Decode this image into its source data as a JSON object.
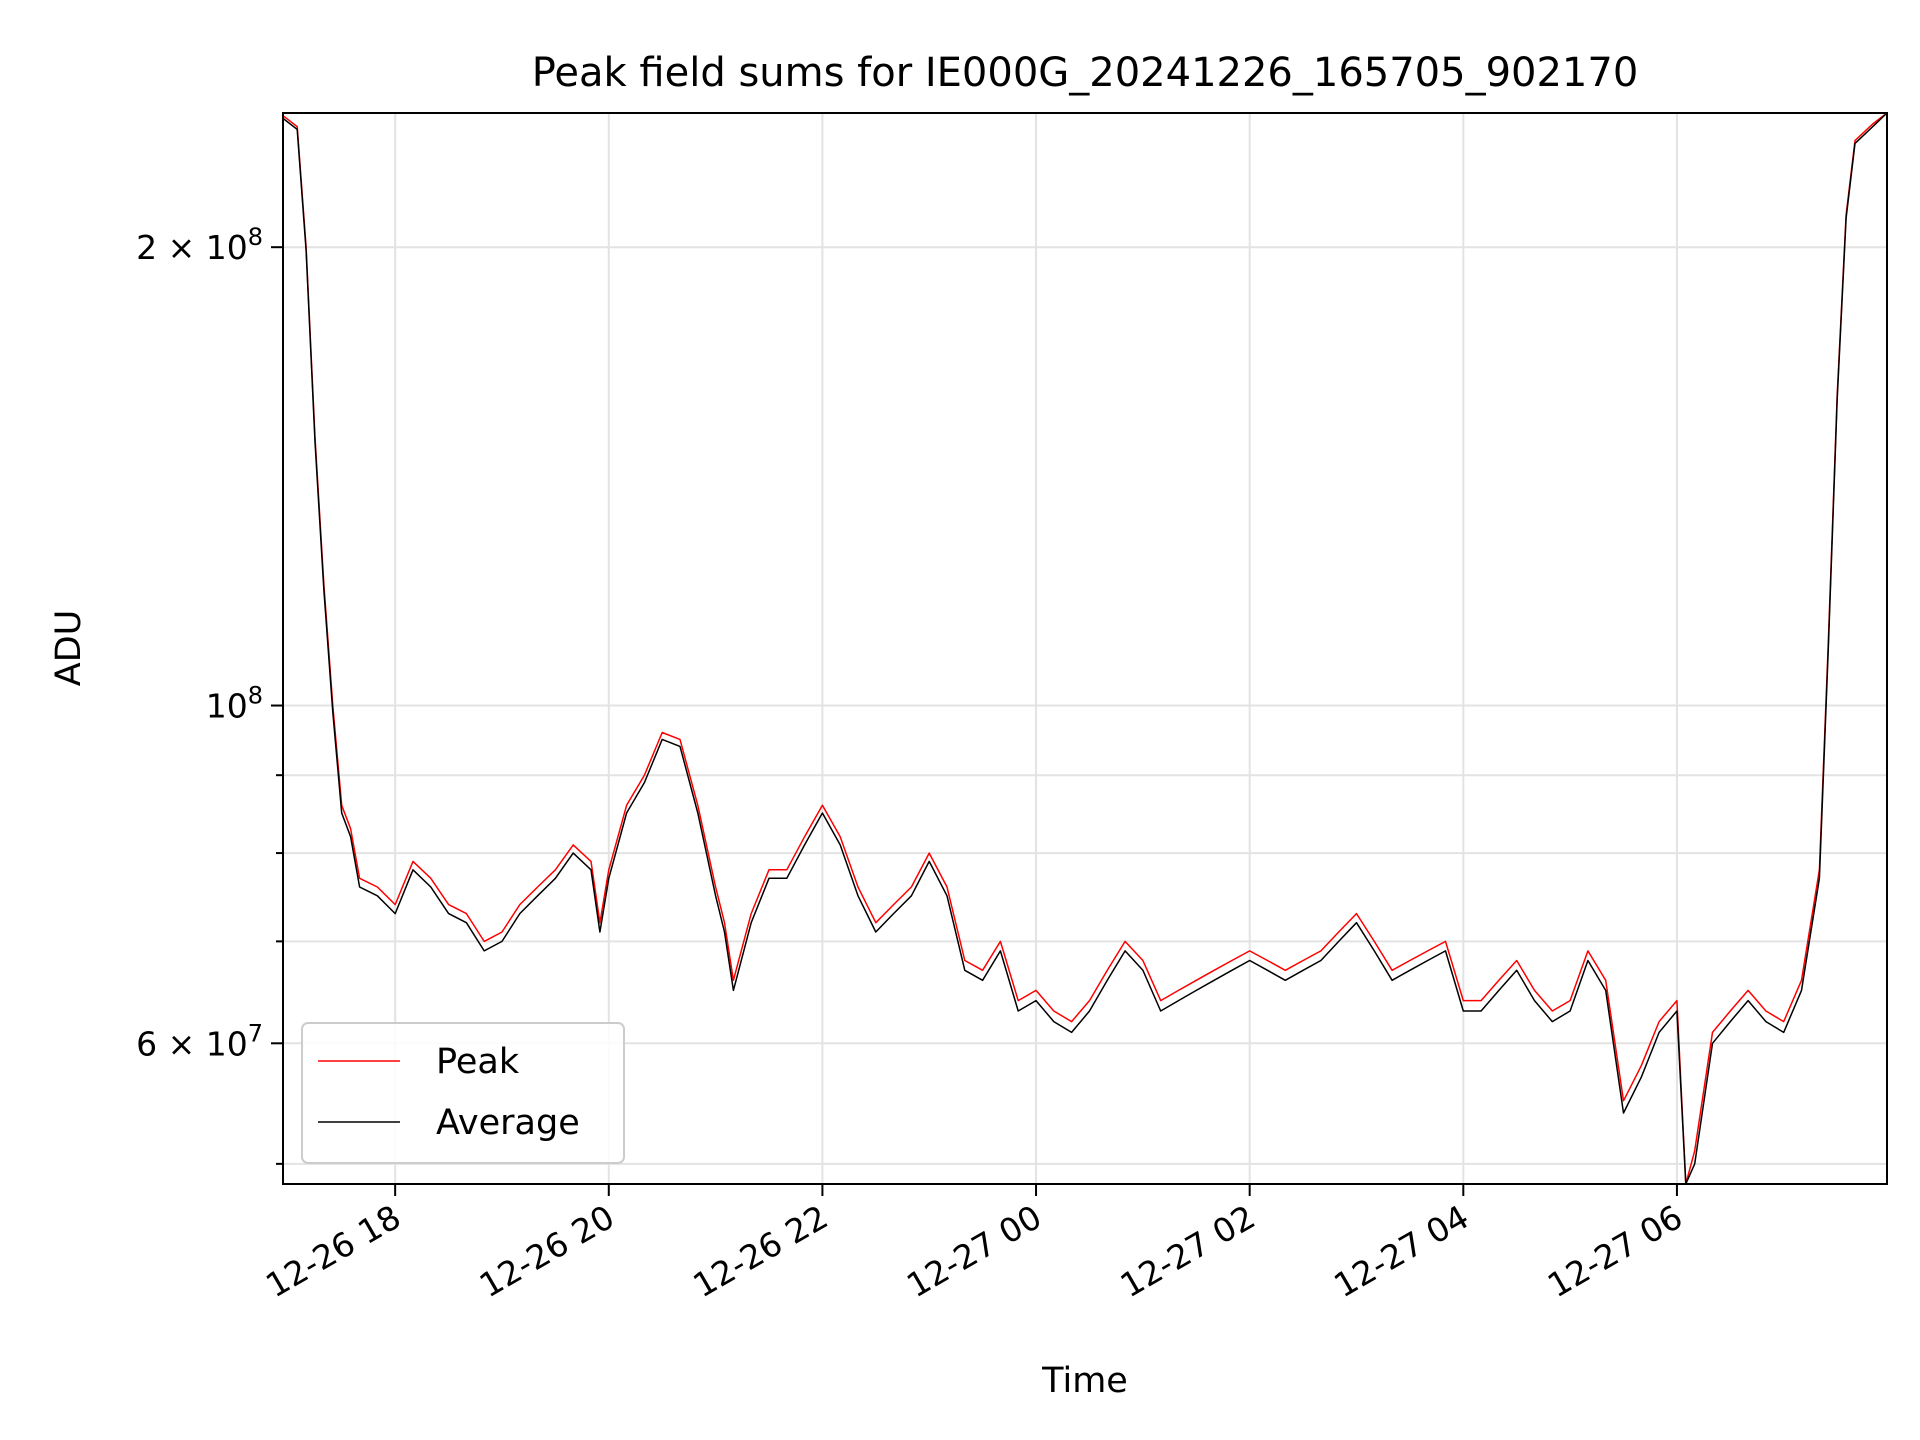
{
  "chart_data": {
    "type": "line",
    "title": "Peak field sums for IE000G_20241226_165705_902170",
    "xlabel": "Time",
    "ylabel": "ADU",
    "yscale": "log",
    "grid": true,
    "legend_position": "lower-left",
    "xlim": [
      "2024-12-26 16:57",
      "2024-12-27 07:58"
    ],
    "ylim": [
      48500000,
      245000000
    ],
    "x_ticks": [
      {
        "value": "2024-12-26 18:00",
        "label": "12-26 18"
      },
      {
        "value": "2024-12-26 20:00",
        "label": "12-26 20"
      },
      {
        "value": "2024-12-26 22:00",
        "label": "12-26 22"
      },
      {
        "value": "2024-12-27 00:00",
        "label": "12-27 00"
      },
      {
        "value": "2024-12-27 02:00",
        "label": "12-27 02"
      },
      {
        "value": "2024-12-27 04:00",
        "label": "12-27 04"
      },
      {
        "value": "2024-12-27 06:00",
        "label": "12-27 06"
      }
    ],
    "y_major_ticks": [
      {
        "value": 100000000,
        "base": "10",
        "exp": "8"
      },
      {
        "value": 60000000,
        "base": "6 × 10",
        "exp": "7"
      },
      {
        "value": 200000000,
        "base": "2 × 10",
        "exp": "8"
      }
    ],
    "y_minor_ticks": [
      50000000,
      70000000,
      80000000,
      90000000
    ],
    "series": [
      {
        "name": "Peak",
        "color": "#ff0000",
        "x": [
          "2024-12-26 16:57",
          "2024-12-26 17:05",
          "2024-12-26 17:10",
          "2024-12-26 17:15",
          "2024-12-26 17:20",
          "2024-12-26 17:25",
          "2024-12-26 17:30",
          "2024-12-26 17:35",
          "2024-12-26 17:40",
          "2024-12-26 17:50",
          "2024-12-26 18:00",
          "2024-12-26 18:10",
          "2024-12-26 18:20",
          "2024-12-26 18:30",
          "2024-12-26 18:40",
          "2024-12-26 18:50",
          "2024-12-26 19:00",
          "2024-12-26 19:10",
          "2024-12-26 19:20",
          "2024-12-26 19:30",
          "2024-12-26 19:40",
          "2024-12-26 19:50",
          "2024-12-26 19:55",
          "2024-12-26 20:00",
          "2024-12-26 20:10",
          "2024-12-26 20:20",
          "2024-12-26 20:30",
          "2024-12-26 20:40",
          "2024-12-26 20:50",
          "2024-12-26 21:00",
          "2024-12-26 21:05",
          "2024-12-26 21:10",
          "2024-12-26 21:20",
          "2024-12-26 21:30",
          "2024-12-26 21:40",
          "2024-12-26 21:50",
          "2024-12-26 22:00",
          "2024-12-26 22:10",
          "2024-12-26 22:20",
          "2024-12-26 22:30",
          "2024-12-26 22:40",
          "2024-12-26 22:50",
          "2024-12-26 23:00",
          "2024-12-26 23:10",
          "2024-12-26 23:20",
          "2024-12-26 23:30",
          "2024-12-26 23:40",
          "2024-12-26 23:50",
          "2024-12-27 00:00",
          "2024-12-27 00:10",
          "2024-12-27 00:20",
          "2024-12-27 00:30",
          "2024-12-27 00:40",
          "2024-12-27 00:50",
          "2024-12-27 01:00",
          "2024-12-27 01:10",
          "2024-12-27 01:20",
          "2024-12-27 01:30",
          "2024-12-27 01:40",
          "2024-12-27 01:50",
          "2024-12-27 02:00",
          "2024-12-27 02:10",
          "2024-12-27 02:20",
          "2024-12-27 02:30",
          "2024-12-27 02:40",
          "2024-12-27 02:50",
          "2024-12-27 03:00",
          "2024-12-27 03:10",
          "2024-12-27 03:20",
          "2024-12-27 03:30",
          "2024-12-27 03:40",
          "2024-12-27 03:50",
          "2024-12-27 04:00",
          "2024-12-27 04:10",
          "2024-12-27 04:20",
          "2024-12-27 04:30",
          "2024-12-27 04:40",
          "2024-12-27 04:50",
          "2024-12-27 05:00",
          "2024-12-27 05:10",
          "2024-12-27 05:20",
          "2024-12-27 05:30",
          "2024-12-27 05:40",
          "2024-12-27 05:50",
          "2024-12-27 06:00",
          "2024-12-27 06:05",
          "2024-12-27 06:10",
          "2024-12-27 06:20",
          "2024-12-27 06:30",
          "2024-12-27 06:40",
          "2024-12-27 06:50",
          "2024-12-27 07:00",
          "2024-12-27 07:10",
          "2024-12-27 07:20",
          "2024-12-27 07:25",
          "2024-12-27 07:30",
          "2024-12-27 07:35",
          "2024-12-27 07:40",
          "2024-12-27 07:50",
          "2024-12-27 07:58"
        ],
        "values": [
          244000000,
          240000000,
          200000000,
          150000000,
          120000000,
          100000000,
          86000000,
          83000000,
          77000000,
          76000000,
          74000000,
          79000000,
          77000000,
          74000000,
          73000000,
          70000000,
          71000000,
          74000000,
          76000000,
          78000000,
          81000000,
          79000000,
          72000000,
          78000000,
          86000000,
          90000000,
          96000000,
          95000000,
          86000000,
          76000000,
          72000000,
          66000000,
          73000000,
          78000000,
          78000000,
          82000000,
          86000000,
          82000000,
          76000000,
          72000000,
          74000000,
          76000000,
          80000000,
          76000000,
          68000000,
          67000000,
          70000000,
          64000000,
          65000000,
          63000000,
          62000000,
          64000000,
          67000000,
          70000000,
          68000000,
          64000000,
          65000000,
          66000000,
          67000000,
          68000000,
          69000000,
          68000000,
          67000000,
          68000000,
          69000000,
          71000000,
          73000000,
          70000000,
          67000000,
          68000000,
          69000000,
          70000000,
          64000000,
          64000000,
          66000000,
          68000000,
          65000000,
          63000000,
          64000000,
          69000000,
          66000000,
          55000000,
          58000000,
          62000000,
          64000000,
          48500000,
          51000000,
          61000000,
          63000000,
          65000000,
          63000000,
          62000000,
          66000000,
          78000000,
          110000000,
          160000000,
          210000000,
          235000000,
          241000000,
          245000000
        ]
      },
      {
        "name": "Average",
        "color": "#000000",
        "x": [
          "2024-12-26 16:57",
          "2024-12-26 17:05",
          "2024-12-26 17:10",
          "2024-12-26 17:15",
          "2024-12-26 17:20",
          "2024-12-26 17:25",
          "2024-12-26 17:30",
          "2024-12-26 17:35",
          "2024-12-26 17:40",
          "2024-12-26 17:50",
          "2024-12-26 18:00",
          "2024-12-26 18:10",
          "2024-12-26 18:20",
          "2024-12-26 18:30",
          "2024-12-26 18:40",
          "2024-12-26 18:50",
          "2024-12-26 19:00",
          "2024-12-26 19:10",
          "2024-12-26 19:20",
          "2024-12-26 19:30",
          "2024-12-26 19:40",
          "2024-12-26 19:50",
          "2024-12-26 19:55",
          "2024-12-26 20:00",
          "2024-12-26 20:10",
          "2024-12-26 20:20",
          "2024-12-26 20:30",
          "2024-12-26 20:40",
          "2024-12-26 20:50",
          "2024-12-26 21:00",
          "2024-12-26 21:05",
          "2024-12-26 21:10",
          "2024-12-26 21:20",
          "2024-12-26 21:30",
          "2024-12-26 21:40",
          "2024-12-26 21:50",
          "2024-12-26 22:00",
          "2024-12-26 22:10",
          "2024-12-26 22:20",
          "2024-12-26 22:30",
          "2024-12-26 22:40",
          "2024-12-26 22:50",
          "2024-12-26 23:00",
          "2024-12-26 23:10",
          "2024-12-26 23:20",
          "2024-12-26 23:30",
          "2024-12-26 23:40",
          "2024-12-26 23:50",
          "2024-12-27 00:00",
          "2024-12-27 00:10",
          "2024-12-27 00:20",
          "2024-12-27 00:30",
          "2024-12-27 00:40",
          "2024-12-27 00:50",
          "2024-12-27 01:00",
          "2024-12-27 01:10",
          "2024-12-27 01:20",
          "2024-12-27 01:30",
          "2024-12-27 01:40",
          "2024-12-27 01:50",
          "2024-12-27 02:00",
          "2024-12-27 02:10",
          "2024-12-27 02:20",
          "2024-12-27 02:30",
          "2024-12-27 02:40",
          "2024-12-27 02:50",
          "2024-12-27 03:00",
          "2024-12-27 03:10",
          "2024-12-27 03:20",
          "2024-12-27 03:30",
          "2024-12-27 03:40",
          "2024-12-27 03:50",
          "2024-12-27 04:00",
          "2024-12-27 04:10",
          "2024-12-27 04:20",
          "2024-12-27 04:30",
          "2024-12-27 04:40",
          "2024-12-27 04:50",
          "2024-12-27 05:00",
          "2024-12-27 05:10",
          "2024-12-27 05:20",
          "2024-12-27 05:30",
          "2024-12-27 05:40",
          "2024-12-27 05:50",
          "2024-12-27 06:00",
          "2024-12-27 06:05",
          "2024-12-27 06:10",
          "2024-12-27 06:20",
          "2024-12-27 06:30",
          "2024-12-27 06:40",
          "2024-12-27 06:50",
          "2024-12-27 07:00",
          "2024-12-27 07:10",
          "2024-12-27 07:20",
          "2024-12-27 07:25",
          "2024-12-27 07:30",
          "2024-12-27 07:35",
          "2024-12-27 07:40",
          "2024-12-27 07:50",
          "2024-12-27 07:58"
        ],
        "values": [
          243000000,
          239000000,
          199000000,
          149000000,
          119000000,
          99000000,
          85000000,
          82000000,
          76000000,
          75000000,
          73000000,
          78000000,
          76000000,
          73000000,
          72000000,
          69000000,
          70000000,
          73000000,
          75000000,
          77000000,
          80000000,
          78000000,
          71000000,
          77000000,
          85000000,
          89000000,
          95000000,
          94000000,
          85000000,
          75000000,
          71000000,
          65000000,
          72000000,
          77000000,
          77000000,
          81000000,
          85000000,
          81000000,
          75000000,
          71000000,
          73000000,
          75000000,
          79000000,
          75000000,
          67000000,
          66000000,
          69000000,
          63000000,
          64000000,
          62000000,
          61000000,
          63000000,
          66000000,
          69000000,
          67000000,
          63000000,
          64000000,
          65000000,
          66000000,
          67000000,
          68000000,
          67000000,
          66000000,
          67000000,
          68000000,
          70000000,
          72000000,
          69000000,
          66000000,
          67000000,
          68000000,
          69000000,
          63000000,
          63000000,
          65000000,
          67000000,
          64000000,
          62000000,
          63000000,
          68000000,
          65000000,
          54000000,
          57000000,
          61000000,
          63000000,
          48500000,
          50000000,
          60000000,
          62000000,
          64000000,
          62000000,
          61000000,
          65000000,
          77000000,
          109000000,
          159000000,
          209000000,
          234000000,
          240000000,
          245000000
        ]
      }
    ]
  }
}
